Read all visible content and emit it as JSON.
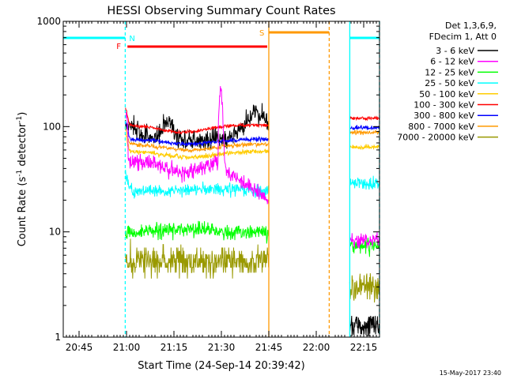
{
  "chart_data": {
    "type": "line",
    "title": "HESSI Observing Summary Count Rates",
    "xlabel": "Start Time (24-Sep-14 20:39:42)",
    "ylabel_main": "Count Rate (s",
    "ylabel_sup1": "-1",
    "ylabel_mid": " detector",
    "ylabel_sup2": "-1",
    "ylabel_end": ")",
    "y_scale": "log",
    "ylim": [
      1,
      1000
    ],
    "xlim_min": [
      0,
      100
    ],
    "x_ticks": [
      {
        "label": "20:45",
        "min": 5
      },
      {
        "label": "21:00",
        "min": 20
      },
      {
        "label": "21:15",
        "min": 35
      },
      {
        "label": "21:30",
        "min": 50
      },
      {
        "label": "21:45",
        "min": 65
      },
      {
        "label": "22:00",
        "min": 80
      },
      {
        "label": "22:15",
        "min": 95
      }
    ],
    "y_ticks": [
      {
        "label": "1",
        "v": 1
      },
      {
        "label": "10",
        "v": 10
      },
      {
        "label": "100",
        "v": 100
      },
      {
        "label": "1000",
        "v": 1000
      }
    ],
    "legend_header": [
      "Det 1,3,6,9,",
      "FDecim 1, Att 0"
    ],
    "series": [
      {
        "name": "3 - 6 keV",
        "color": "#000000"
      },
      {
        "name": "6 - 12 keV",
        "color": "#ff00ff"
      },
      {
        "name": "12 - 25 keV",
        "color": "#00ff00"
      },
      {
        "name": "25 - 50 keV",
        "color": "#00ffff"
      },
      {
        "name": "50 - 100 keV",
        "color": "#ffcc00"
      },
      {
        "name": "100 - 300 keV",
        "color": "#ff0000"
      },
      {
        "name": "300 - 800 keV",
        "color": "#0000ff"
      },
      {
        "name": "800 - 7000 keV",
        "color": "#ff9900"
      },
      {
        "name": "7000 - 20000 keV",
        "color": "#999900"
      }
    ],
    "gaps": [
      [
        0,
        19.6
      ],
      [
        65,
        90.6
      ],
      [
        100,
        101
      ]
    ],
    "annotations": {
      "night_marks": [
        [
          -1,
          19.6
        ],
        [
          90.6,
          100
        ]
      ],
      "night_label": "N",
      "flare_bar": [
        20.3,
        64.5
      ],
      "flare_label": "F",
      "saa_bar": [
        65,
        84.1
      ],
      "saa_label": "S"
    },
    "footer_date": "15-May-2017 23:40"
  }
}
